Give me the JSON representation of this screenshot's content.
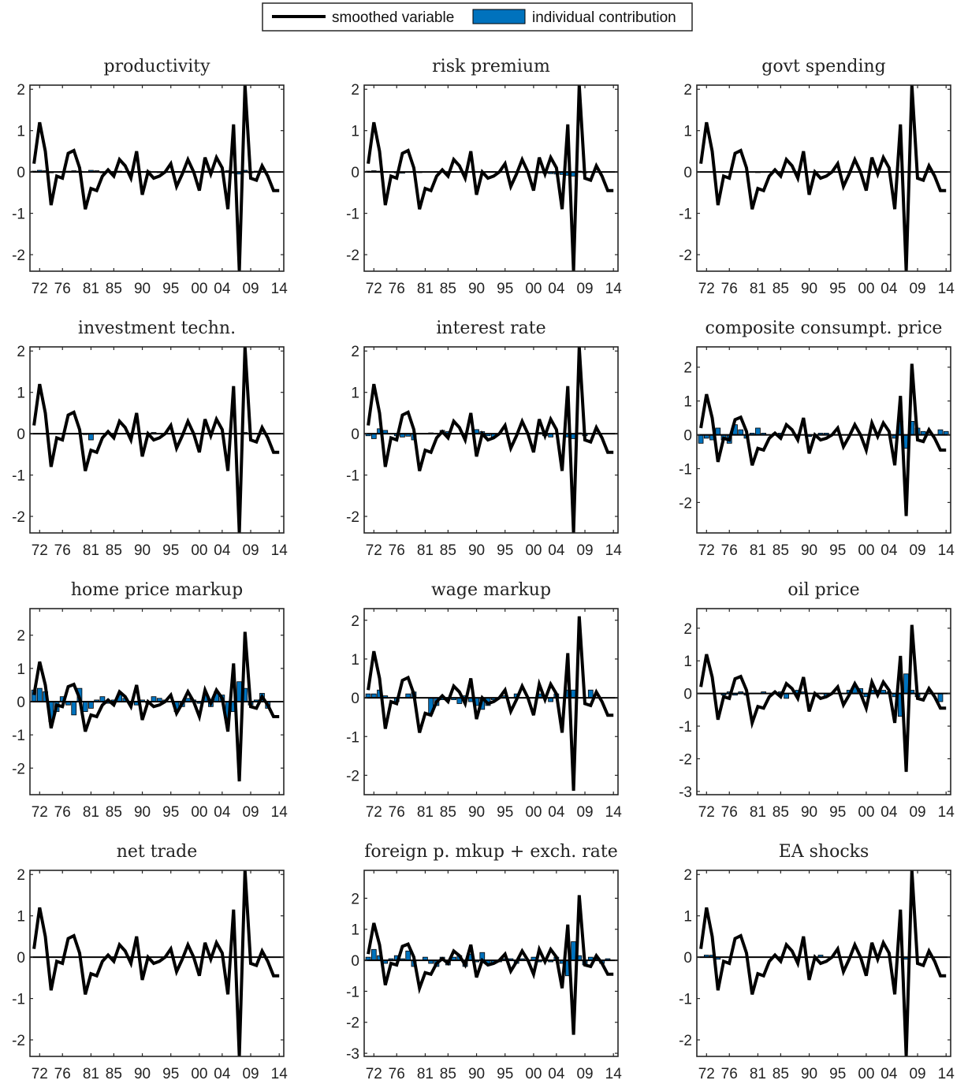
{
  "legend": {
    "smoothed_label": "smoothed variable",
    "contribution_label": "individual contribution"
  },
  "colors": {
    "line": "#000000",
    "bar": "#0072BD",
    "axis": "#262626"
  },
  "chart_data": {
    "type": "bar",
    "layout": "4x3 small multiples, legend at top-center",
    "x_tick_labels": [
      "72",
      "76",
      "81",
      "85",
      "90",
      "95",
      "00",
      "04",
      "09",
      "14"
    ],
    "x_tick_years": [
      1972,
      1976,
      1981,
      1985,
      1990,
      1995,
      2000,
      2004,
      2009,
      2014
    ],
    "years": [
      1971,
      1972,
      1973,
      1974,
      1975,
      1976,
      1977,
      1978,
      1979,
      1980,
      1981,
      1982,
      1983,
      1984,
      1985,
      1986,
      1987,
      1988,
      1989,
      1990,
      1991,
      1992,
      1993,
      1994,
      1995,
      1996,
      1997,
      1998,
      1999,
      2000,
      2001,
      2002,
      2003,
      2004,
      2005,
      2006,
      2007,
      2008,
      2009,
      2010,
      2011,
      2012,
      2013,
      2014
    ],
    "smoothed_variable": [
      0.2,
      1.2,
      0.5,
      -0.8,
      -0.1,
      -0.15,
      0.45,
      0.52,
      0.1,
      -0.9,
      -0.4,
      -0.45,
      -0.1,
      0.05,
      -0.1,
      0.3,
      0.15,
      -0.15,
      0.5,
      -0.55,
      0.0,
      -0.15,
      -0.1,
      0.0,
      0.2,
      -0.35,
      -0.05,
      0.3,
      0.0,
      -0.45,
      0.35,
      -0.05,
      0.35,
      0.1,
      -0.9,
      1.15,
      -2.4,
      2.1,
      -0.15,
      -0.2,
      0.15,
      -0.1,
      -0.45,
      -0.45
    ],
    "panels": [
      {
        "title": "productivity",
        "ylim": [
          -2.4,
          2.1
        ],
        "yticks": [
          -2,
          -1,
          0,
          1,
          2
        ],
        "contribution": [
          0.02,
          0.04,
          0.03,
          -0.02,
          0,
          0.01,
          0.02,
          0.03,
          0.02,
          0,
          0.04,
          0.03,
          -0.02,
          0,
          0.01,
          0.02,
          0.01,
          -0.01,
          0,
          0.01,
          0.02,
          0,
          -0.01,
          0,
          0,
          0.01,
          0,
          0.02,
          0.01,
          0,
          0.02,
          0.01,
          0,
          0.02,
          0.03,
          -0.03,
          -0.05,
          0.04,
          -0.02,
          0.02,
          0.01,
          0,
          0,
          0
        ]
      },
      {
        "title": "risk premium",
        "ylim": [
          -2.4,
          2.1
        ],
        "yticks": [
          -2,
          -1,
          0,
          1,
          2
        ],
        "contribution": [
          0.02,
          0.03,
          0.02,
          0.01,
          0,
          -0.02,
          -0.03,
          0,
          0.01,
          -0.01,
          0,
          0,
          0.01,
          0,
          0,
          0.01,
          0,
          0,
          0,
          0,
          0,
          0.01,
          0.01,
          0,
          0,
          0,
          0,
          0,
          0,
          -0.01,
          -0.02,
          -0.03,
          -0.04,
          -0.05,
          -0.06,
          -0.08,
          -0.1,
          0.02,
          -0.02,
          0,
          0,
          0,
          0,
          0
        ]
      },
      {
        "title": "govt spending",
        "ylim": [
          -2.4,
          2.1
        ],
        "yticks": [
          -2,
          -1,
          0,
          1,
          2
        ],
        "contribution": [
          0,
          0,
          0,
          0,
          0,
          0,
          0,
          0,
          0,
          0,
          -0.01,
          0,
          0,
          0,
          0,
          0,
          0,
          0,
          0,
          0,
          0,
          0,
          0,
          0,
          0,
          0,
          0,
          0,
          0,
          0,
          0,
          0,
          0,
          0,
          0,
          0,
          0,
          0,
          0,
          0,
          0,
          0,
          0,
          0
        ]
      },
      {
        "title": "investment techn.",
        "ylim": [
          -2.4,
          2.1
        ],
        "yticks": [
          -2,
          -1,
          0,
          1,
          2
        ],
        "contribution": [
          0,
          0,
          0,
          0,
          0,
          0,
          0,
          0,
          0,
          -0.02,
          -0.15,
          0,
          0,
          0,
          0,
          0,
          0,
          0,
          0,
          0,
          0,
          0.03,
          0,
          0,
          0,
          0,
          0,
          0,
          0,
          0,
          0,
          0,
          0,
          0,
          0,
          0,
          0,
          0.03,
          0,
          0,
          0,
          0,
          0,
          0
        ]
      },
      {
        "title": "interest rate",
        "ylim": [
          -2.4,
          2.1
        ],
        "yticks": [
          -2,
          -1,
          0,
          1,
          2
        ],
        "contribution": [
          -0.05,
          -0.12,
          0.12,
          0.08,
          0,
          -0.05,
          -0.08,
          -0.06,
          -0.15,
          0,
          0,
          0.02,
          0,
          0.08,
          0.05,
          0,
          0,
          0,
          0,
          0.1,
          0.05,
          -0.05,
          -0.08,
          0,
          0,
          0,
          0,
          0,
          0,
          0,
          0.03,
          -0.05,
          -0.08,
          0,
          0,
          -0.08,
          -0.12,
          0.02,
          -0.05,
          0,
          0,
          0,
          0,
          0
        ]
      },
      {
        "title": "composite consumpt. price",
        "ylim": [
          -2.9,
          2.6
        ],
        "yticks": [
          -2,
          -1,
          0,
          1,
          2
        ],
        "contribution": [
          -0.25,
          -0.1,
          -0.15,
          0.2,
          -0.15,
          -0.25,
          0.3,
          0.15,
          -0.1,
          0.05,
          0.2,
          0.05,
          0,
          0.05,
          0.05,
          0,
          0,
          0,
          0,
          -0.05,
          0,
          0.05,
          0.05,
          0,
          0,
          0,
          0,
          0,
          0,
          0,
          0,
          0,
          0,
          0,
          -0.1,
          0.4,
          -0.4,
          0.4,
          0.2,
          0.1,
          0,
          0,
          0.15,
          0.1
        ]
      },
      {
        "title": "home price markup",
        "ylim": [
          -2.8,
          2.8
        ],
        "yticks": [
          -2,
          -1,
          0,
          1,
          2
        ],
        "contribution": [
          0.35,
          0.4,
          0.3,
          -0.6,
          -0.3,
          0.15,
          -0.1,
          -0.4,
          0.4,
          -0.3,
          -0.2,
          0.05,
          0.15,
          -0.05,
          0.05,
          0.2,
          0.1,
          -0.05,
          -0.1,
          0.05,
          -0.05,
          0.15,
          0.1,
          0.05,
          0,
          -0.3,
          -0.15,
          0.1,
          0.05,
          -0.05,
          0.2,
          -0.15,
          0.3,
          0.2,
          -0.5,
          -0.3,
          0.6,
          0.4,
          -0.1,
          0.05,
          0.25,
          -0.2,
          0,
          0
        ]
      },
      {
        "title": "wage markup",
        "ylim": [
          -2.5,
          2.3
        ],
        "yticks": [
          -2,
          -1,
          0,
          1,
          2
        ],
        "contribution": [
          0.1,
          0.1,
          0.2,
          0.05,
          0,
          -0.1,
          0,
          0.1,
          0.15,
          0,
          0,
          -0.4,
          -0.2,
          -0.05,
          0,
          -0.05,
          -0.15,
          0.05,
          -0.1,
          -0.2,
          -0.3,
          -0.2,
          -0.05,
          0,
          0.05,
          0,
          0.1,
          0,
          0,
          0,
          0.1,
          0,
          -0.1,
          0.1,
          0,
          0.2,
          0.2,
          0,
          0,
          0.2,
          0,
          0,
          0,
          0
        ]
      },
      {
        "title": "oil price",
        "ylim": [
          -3.1,
          2.6
        ],
        "yticks": [
          -3,
          -2,
          -1,
          0,
          1,
          2
        ],
        "contribution": [
          0,
          0,
          0,
          0,
          -0.05,
          0.05,
          -0.05,
          0.05,
          -0.05,
          0,
          0,
          0.05,
          0,
          0,
          0.05,
          -0.15,
          0,
          0.1,
          0.05,
          0,
          0,
          0,
          -0.1,
          0,
          0,
          0,
          0.1,
          0.2,
          0.15,
          -0.1,
          0.1,
          0.1,
          0.1,
          0.05,
          -0.1,
          -0.7,
          0.6,
          0.1,
          -0.1,
          0,
          0,
          0,
          -0.25,
          0
        ]
      },
      {
        "title": "net trade",
        "ylim": [
          -2.4,
          2.1
        ],
        "yticks": [
          -2,
          -1,
          0,
          1,
          2
        ],
        "contribution": [
          0,
          0,
          0,
          0,
          0,
          0,
          0,
          0,
          0,
          0,
          0,
          0,
          0,
          0,
          0,
          0,
          0,
          0,
          0,
          0,
          0,
          0,
          0,
          0,
          0,
          0,
          0,
          0,
          0,
          0,
          0,
          0,
          0,
          0,
          0,
          0,
          0,
          0,
          0,
          0,
          0,
          0,
          0,
          0
        ]
      },
      {
        "title": "foreign p. mkup + exch. rate",
        "ylim": [
          -3.1,
          2.9
        ],
        "yticks": [
          -3,
          -2,
          -1,
          0,
          1,
          2
        ],
        "contribution": [
          0.1,
          0.35,
          0.15,
          -0.1,
          0.05,
          0.15,
          0.05,
          0.3,
          -0.2,
          0,
          0.1,
          -0.1,
          -0.2,
          0.1,
          -0.15,
          0.1,
          0.15,
          -0.2,
          0.2,
          -0.05,
          0.25,
          -0.1,
          -0.1,
          -0.05,
          0.05,
          0.05,
          -0.1,
          0.05,
          0,
          0.1,
          -0.05,
          0.05,
          -0.05,
          0.1,
          -0.1,
          -0.5,
          0.6,
          0.15,
          -0.15,
          0.1,
          0.05,
          -0.1,
          0.05,
          0
        ]
      },
      {
        "title": "EA shocks",
        "ylim": [
          -2.4,
          2.1
        ],
        "yticks": [
          -2,
          -1,
          0,
          1,
          2
        ],
        "contribution": [
          0,
          0.05,
          0.05,
          -0.05,
          0,
          0,
          0,
          0,
          0,
          0,
          0,
          0,
          0,
          0,
          0,
          0,
          0,
          0,
          0,
          0,
          0,
          0.05,
          0,
          0,
          0,
          0,
          0,
          0,
          0,
          0,
          0,
          0,
          0,
          0,
          0,
          0,
          -0.05,
          0,
          0,
          0,
          0,
          0,
          0,
          0
        ]
      }
    ]
  }
}
